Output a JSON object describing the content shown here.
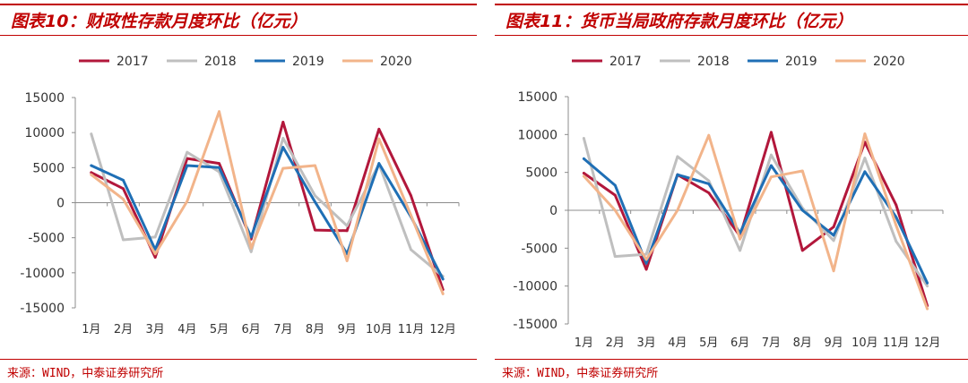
{
  "colors": {
    "brand_red": "#c00000",
    "series": [
      "#b2173b",
      "#bfbfbf",
      "#1f6fb5",
      "#f2b48a"
    ]
  },
  "charts": [
    {
      "title": "图表10：财政性存款月度环比（亿元）",
      "source": "来源：WIND，中泰证券研究所",
      "chart_data": {
        "type": "line",
        "title": "财政性存款月度环比（亿元）",
        "categories": [
          "1月",
          "2月",
          "3月",
          "4月",
          "5月",
          "6月",
          "7月",
          "8月",
          "9月",
          "10月",
          "11月",
          "12月"
        ],
        "ylim": [
          -15000,
          15000
        ],
        "yticks": [
          15000,
          10000,
          5000,
          0,
          -5000,
          -10000,
          -15000
        ],
        "ytick_labels": [
          "15000",
          "10000",
          "5000",
          "0",
          "-5000",
          "-10000",
          "-15000"
        ],
        "legend_position": "top",
        "series": [
          {
            "name": "2017",
            "values": [
              4300,
              2000,
              -7800,
              6300,
              5600,
              -5200,
              11500,
              -3900,
              -4000,
              10500,
              1000,
              -12400
            ]
          },
          {
            "name": "2018",
            "values": [
              9800,
              -5300,
              -4900,
              7200,
              4400,
              -7000,
              9200,
              1000,
              -3300,
              5500,
              -6700,
              -10500
            ]
          },
          {
            "name": "2019",
            "values": [
              5300,
              3200,
              -6700,
              5300,
              5000,
              -4900,
              7900,
              100,
              -7300,
              5600,
              -2000,
              -10900
            ]
          },
          {
            "name": "2020",
            "values": [
              4000,
              500,
              -7300,
              200,
              13000,
              -6500,
              4900,
              5300,
              -8300,
              9100,
              -1800,
              -13000
            ]
          }
        ]
      }
    },
    {
      "title": "图表11：货币当局政府存款月度环比（亿元）",
      "source": "来源：WIND，中泰证券研究所",
      "chart_data": {
        "type": "line",
        "title": "货币当局政府存款月度环比（亿元）",
        "categories": [
          "1月",
          "2月",
          "3月",
          "4月",
          "5月",
          "6月",
          "7月",
          "8月",
          "9月",
          "10月",
          "11月",
          "12月"
        ],
        "ylim": [
          -15000,
          15000
        ],
        "yticks": [
          15000,
          10000,
          5000,
          0,
          -5000,
          -10000,
          -15000
        ],
        "ytick_labels": [
          "15000",
          "10000",
          "5000",
          "0",
          "-5000",
          "-10000",
          "-15000"
        ],
        "legend_position": "top",
        "series": [
          {
            "name": "2017",
            "values": [
              4900,
              2000,
              -7800,
              4700,
              2300,
              -3400,
              10300,
              -5300,
              -2200,
              9000,
              700,
              -12600
            ]
          },
          {
            "name": "2018",
            "values": [
              9500,
              -6100,
              -5800,
              7100,
              3900,
              -5300,
              7300,
              300,
              -4000,
              6900,
              -4100,
              -10000
            ]
          },
          {
            "name": "2019",
            "values": [
              6800,
              3300,
              -7000,
              4700,
              3500,
              -3000,
              5900,
              0,
              -3300,
              5100,
              -900,
              -9600
            ]
          },
          {
            "name": "2020",
            "values": [
              4500,
              0,
              -6500,
              0,
              9900,
              -3800,
              4400,
              5200,
              -8000,
              10100,
              -2000,
              -13000
            ]
          }
        ]
      }
    }
  ]
}
